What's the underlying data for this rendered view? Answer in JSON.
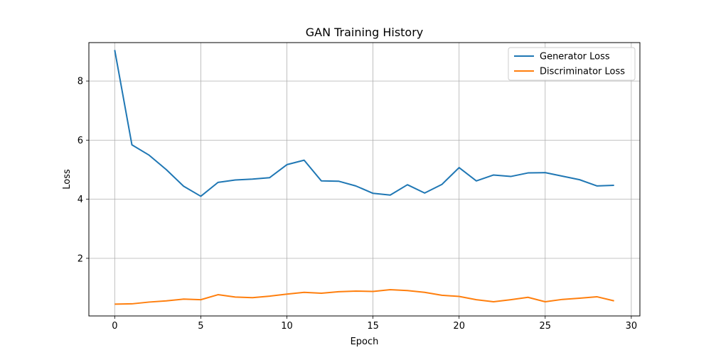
{
  "chart_data": {
    "type": "line",
    "title": "GAN Training History",
    "xlabel": "Epoch",
    "ylabel": "Loss",
    "xlim": [
      -1.5,
      30.5
    ],
    "ylim": [
      0.05,
      9.3
    ],
    "xticks": [
      0,
      5,
      10,
      15,
      20,
      25,
      30
    ],
    "yticks": [
      2,
      4,
      6,
      8
    ],
    "grid": true,
    "legend_position": "top-right",
    "x": [
      0,
      1,
      2,
      3,
      4,
      5,
      6,
      7,
      8,
      9,
      10,
      11,
      12,
      13,
      14,
      15,
      16,
      17,
      18,
      19,
      20,
      21,
      22,
      23,
      24,
      25,
      26,
      27,
      28,
      29
    ],
    "series": [
      {
        "name": "Generator Loss",
        "color": "#1f77b4",
        "values": [
          9.05,
          5.84,
          5.49,
          5.0,
          4.44,
          4.1,
          4.57,
          4.65,
          4.68,
          4.73,
          5.17,
          5.32,
          4.62,
          4.61,
          4.45,
          4.2,
          4.14,
          4.49,
          4.21,
          4.5,
          5.07,
          4.62,
          4.82,
          4.77,
          4.89,
          4.9,
          4.78,
          4.66,
          4.45,
          4.47
        ]
      },
      {
        "name": "Discriminator Loss",
        "color": "#ff7f0e",
        "values": [
          0.45,
          0.46,
          0.52,
          0.56,
          0.62,
          0.6,
          0.77,
          0.69,
          0.67,
          0.72,
          0.79,
          0.85,
          0.82,
          0.87,
          0.89,
          0.88,
          0.94,
          0.91,
          0.85,
          0.75,
          0.71,
          0.6,
          0.53,
          0.6,
          0.68,
          0.53,
          0.61,
          0.65,
          0.7,
          0.56
        ]
      }
    ]
  }
}
